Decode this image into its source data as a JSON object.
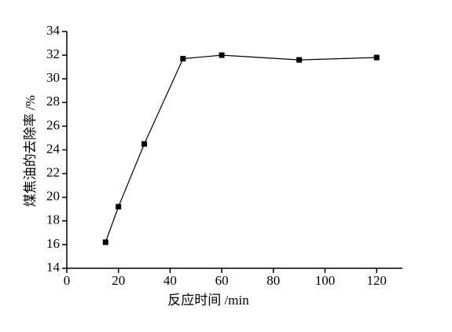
{
  "chart_data": {
    "type": "line",
    "x_label": "反应时间 /min",
    "y_label": "煤焦油的去除率 /%",
    "x": [
      15,
      20,
      30,
      45,
      60,
      90,
      120
    ],
    "series": [
      {
        "color": "#000000",
        "values": [
          16.2,
          19.2,
          24.5,
          31.7,
          32.0,
          31.6,
          31.8
        ]
      }
    ],
    "xlim": [
      0,
      130
    ],
    "xticks": [
      0,
      20,
      40,
      60,
      80,
      100,
      120
    ],
    "ylim": [
      14,
      34
    ],
    "yticks": [
      14,
      16,
      18,
      20,
      22,
      24,
      26,
      28,
      30,
      32,
      34
    ]
  }
}
